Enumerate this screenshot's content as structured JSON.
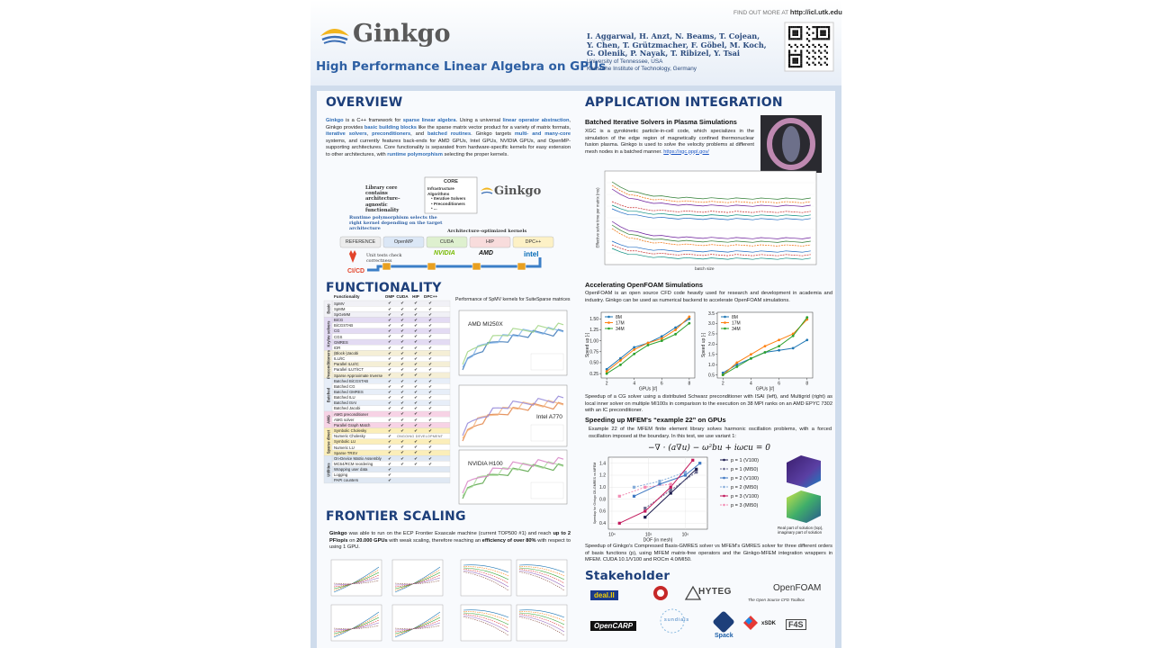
{
  "header": {
    "find_more_label": "FIND OUT MORE AT",
    "find_more_url": "http://icl.utk.edu",
    "logo": "Ginkgo",
    "title": "High Performance Linear Algebra on GPUs",
    "authors": [
      "I. Aggarwal, H. Anzt, N. Beams, T. Cojean,",
      "Y. Chen, T. Grützmacher, F. Göbel, M. Koch,",
      "G. Olenik, P. Nayak, T. Ribizel, Y. Tsai"
    ],
    "affiliations": [
      "University of Tennessee, USA",
      "Karlsruhe Institute of Technology, Germany"
    ]
  },
  "overview": {
    "heading": "OVERVIEW",
    "parts": [
      {
        "text": "Ginkgo",
        "em": true
      },
      " is a C++ framework for ",
      {
        "text": "sparse linear algebra",
        "em": true
      },
      ". Using a universal ",
      {
        "text": "linear operator abstraction",
        "em": true
      },
      ", Ginkgo provides ",
      {
        "text": "basic building blocks",
        "em": true
      },
      " like the sparse matrix vector product for a variety of matrix formats, ",
      {
        "text": "iterative solvers",
        "em": true
      },
      ", ",
      {
        "text": "preconditioners",
        "em": true
      },
      ", and ",
      {
        "text": "batched routines",
        "em": true
      },
      ". Ginkgo targets ",
      {
        "text": "multi- and many-core",
        "em": true
      },
      " systems, and currently features back-ends for AMD GPUs, Intel GPUs, NVIDIA GPUs, and OpenMP-supporting architectures. Core functionality is separated from hardware-specific kernels for easy extension to other architectures, with ",
      {
        "text": "runtime polymorphism",
        "em": true
      },
      " selecting the proper kernels."
    ],
    "diagram": {
      "core_note": "Library core contains architecture–agnostic functionality",
      "core_title": "CORE",
      "core_items": [
        "Infrastructure",
        "Algorithms",
        "• Iterative Solvers",
        "• Preconditioners",
        "• ..."
      ],
      "logo": "Ginkgo",
      "runtime_note": "Runtime polymorphism selects the right kernel depending on the target architecture",
      "kernels_label": "Architecture–optimized kernels",
      "backends": [
        {
          "name": "REFERENCE",
          "color": "#ececec"
        },
        {
          "name": "OpenMP",
          "color": "#dbe7f6"
        },
        {
          "name": "CUDA",
          "color": "#def0cf"
        },
        {
          "name": "HIP",
          "color": "#f8dcdc"
        },
        {
          "name": "DPC++",
          "color": "#fdf1c6"
        }
      ],
      "vendors": [
        "NVIDIA",
        "AMD",
        "intel"
      ],
      "tests_note": "Unit tests check correctness",
      "cicd": "CI/CD"
    }
  },
  "functionality": {
    "heading": "FUNCTIONALITY",
    "columns": [
      "Functionality",
      "OMP",
      "CUDA",
      "HIP",
      "DPC++"
    ],
    "groups": [
      {
        "name": "Basic",
        "color": "#f1f1f6",
        "rows": [
          {
            "name": "SpMV",
            "checks": [
              "✔",
              "✔",
              "✔",
              "✔"
            ]
          },
          {
            "name": "SpMM",
            "checks": [
              "✔",
              "✔",
              "✔",
              "✔"
            ]
          },
          {
            "name": "SpGeMM",
            "checks": [
              "✔",
              "✔",
              "✔",
              "✔"
            ]
          }
        ]
      },
      {
        "name": "Krylov solvers",
        "color": "#e3dbf3",
        "rows": [
          {
            "name": "BiCG",
            "checks": [
              "✔",
              "✔",
              "✔",
              "✔"
            ]
          },
          {
            "name": "BiCGSTAB",
            "checks": [
              "✔",
              "✔",
              "✔",
              "✔"
            ]
          },
          {
            "name": "CG",
            "checks": [
              "✔",
              "✔",
              "✔",
              "✔"
            ]
          },
          {
            "name": "CGS",
            "checks": [
              "✔",
              "✔",
              "✔",
              "✔"
            ]
          },
          {
            "name": "GMRES",
            "checks": [
              "✔",
              "✔",
              "✔",
              "✔"
            ]
          },
          {
            "name": "IDR",
            "checks": [
              "✔",
              "✔",
              "✔",
              "✔"
            ]
          }
        ]
      },
      {
        "name": "Preconditioners",
        "color": "#f5efd6",
        "rows": [
          {
            "name": "(Block-)Jacobi",
            "checks": [
              "✔",
              "✔",
              "✔",
              "✔"
            ]
          },
          {
            "name": "ILU/IC",
            "checks": [
              "✔",
              "✔",
              "✔",
              "✔"
            ]
          },
          {
            "name": "Parallel ILU/IC",
            "checks": [
              "✔",
              "✔",
              "✔",
              "✔"
            ]
          },
          {
            "name": "Parallel ILUT/ICT",
            "checks": [
              "✔",
              "✔",
              "✔",
              "✔"
            ]
          },
          {
            "name": "Sparse Approximate Inverse",
            "checks": [
              "✔",
              "✔",
              "✔",
              "✔"
            ]
          }
        ]
      },
      {
        "name": "Batched",
        "color": "#e7eef8",
        "rows": [
          {
            "name": "Batched BiCGSTAB",
            "checks": [
              "✔",
              "✔",
              "✔",
              "✔"
            ]
          },
          {
            "name": "Batched CG",
            "checks": [
              "✔",
              "✔",
              "✔",
              "✔"
            ]
          },
          {
            "name": "Batched GMRES",
            "checks": [
              "✔",
              "✔",
              "✔",
              "✔"
            ]
          },
          {
            "name": "Batched ILU",
            "checks": [
              "✔",
              "✔",
              "✔",
              "✔"
            ]
          },
          {
            "name": "Batched ISAI",
            "checks": [
              "✔",
              "✔",
              "✔",
              "✔"
            ]
          },
          {
            "name": "Batched Jacobi",
            "checks": [
              "✔",
              "✔",
              "✔",
              "✔"
            ]
          }
        ]
      },
      {
        "name": "AMG",
        "color": "#f7d3e5",
        "rows": [
          {
            "name": "AMG preconditioner",
            "checks": [
              "✔",
              "✔",
              "✔",
              "✔"
            ]
          },
          {
            "name": "AMG solver",
            "checks": [
              "✔",
              "✔",
              "✔",
              "✔"
            ]
          },
          {
            "name": "Parallel Graph Match",
            "checks": [
              "✔",
              "✔",
              "✔",
              "✔"
            ]
          }
        ]
      },
      {
        "name": "Sparse direct",
        "color": "#fbeeb9",
        "rows": [
          {
            "name": "Symbolic Cholesky",
            "checks": [
              "✔",
              "✔",
              "✔",
              "✔"
            ]
          },
          {
            "name": "Numeric Cholesky",
            "checks": [
              "✔"
            ],
            "note": "ONGOING DEVELOPMENT"
          },
          {
            "name": "Symbolic LU",
            "checks": [
              "✔",
              "✔",
              "✔",
              "✔"
            ]
          },
          {
            "name": "Numeric LU",
            "checks": [
              "✔",
              "✔",
              "✔",
              "✔"
            ]
          },
          {
            "name": "Sparse TRSV",
            "checks": [
              "✔",
              "✔",
              "✔",
              "✔"
            ]
          }
        ]
      },
      {
        "name": "Utilities",
        "color": "#dfe8f3",
        "rows": [
          {
            "name": "On-Device Matrix Assembly",
            "checks": [
              "✔",
              "✔",
              "✔",
              "✔"
            ]
          },
          {
            "name": "MC64/RCM reordering",
            "checks": [
              "✔",
              "✔",
              "✔",
              "✔"
            ]
          },
          {
            "name": "Wrapping user data",
            "checks": [
              "✔"
            ]
          },
          {
            "name": "Logging",
            "checks": [
              "✔"
            ]
          },
          {
            "name": "PAPI counters",
            "checks": [
              "✔"
            ]
          }
        ]
      }
    ],
    "perf_title": "Performance of SpMV kernels for SuiteSparse matrices",
    "perf_panels": [
      "AMD MI250X",
      "Intel A770",
      "NVIDIA H100"
    ]
  },
  "frontier": {
    "heading": "FRONTIER SCALING",
    "parts": [
      {
        "text": "Ginkgo",
        "em": false
      },
      " was able to run on the ECP Frontier Exascale machine (current TOP500 #1) and reach ",
      {
        "text": "up to 2 PFlop/s",
        "em": false
      },
      " on ",
      {
        "text": "20.000 GPUs",
        "em": false
      },
      " with weak scaling, therefore reaching an ",
      {
        "text": "efficiency of over 80%",
        "em": false
      },
      " with respect to using 1 GPU."
    ]
  },
  "application": {
    "heading": "APPLICATION INTEGRATION",
    "xgc": {
      "title": "Batched Iterative Solvers in Plasma Simulations",
      "text": "XGC is a gyrokinetic particle-in-cell code, which specializes in the simulation of the edge region of magnetically confined thermonuclear fusion plasma. Ginkgo is used to solve the velocity problems at different mesh nodes in a batched manner. ",
      "link": "https://xgc.pppl.gov/",
      "xlabel": "batch size",
      "ylabel": "Effective solve time per matrix (ms)"
    },
    "openfoam": {
      "title": "Accelerating OpenFOAM Simulations",
      "text": "OpenFOAM is an open source CFD code heavily used for research and development in academia and industry. Ginkgo can be used as numerical backend to accelerate OpenFOAM simulations.",
      "charts": [
        {
          "xlabel": "GPUs [#]",
          "ylabel": "Speed up [-]",
          "legend": "upper left",
          "grid": false,
          "x": [
            2,
            3,
            4,
            5,
            6,
            7,
            8
          ],
          "xlim": [
            1.6,
            8.4
          ],
          "xticks": [
            2,
            4,
            6,
            8
          ],
          "ylim": [
            0.15,
            1.65
          ],
          "yticks": [
            {
              "value": 0.25,
              "label": "0.25"
            },
            {
              "value": 0.5,
              "label": "0.50"
            },
            {
              "value": 0.75,
              "label": "0.75"
            },
            {
              "value": 1,
              "label": "1.00"
            },
            {
              "value": 1.25,
              "label": "1.25"
            },
            {
              "value": 1.5,
              "label": "1.50"
            }
          ],
          "series": [
            {
              "name": "8M",
              "color": "#1f77b4",
              "values": [
                0.35,
                0.6,
                0.85,
                0.95,
                1.1,
                1.3,
                1.5
              ]
            },
            {
              "name": "17M",
              "color": "#ff7f0e",
              "values": [
                0.3,
                0.55,
                0.8,
                0.95,
                1.05,
                1.25,
                1.55
              ]
            },
            {
              "name": "34M",
              "color": "#2ca02c",
              "values": [
                0.25,
                0.45,
                0.7,
                0.9,
                1.0,
                1.15,
                1.4
              ]
            }
          ]
        },
        {
          "xlabel": "GPUs [#]",
          "ylabel": "Speed up [-]",
          "legend": "upper left",
          "grid": false,
          "x": [
            2,
            3,
            4,
            5,
            6,
            7,
            8
          ],
          "xlim": [
            1.6,
            8.4
          ],
          "xticks": [
            2,
            4,
            6,
            8
          ],
          "ylim": [
            0.35,
            3.55
          ],
          "yticks": [
            {
              "value": 0.5,
              "label": "0.5"
            },
            {
              "value": 1,
              "label": "1.0"
            },
            {
              "value": 1.5,
              "label": "1.5"
            },
            {
              "value": 2,
              "label": "2.0"
            },
            {
              "value": 2.5,
              "label": "2.5"
            },
            {
              "value": 3,
              "label": "3.0"
            },
            {
              "value": 3.5,
              "label": "3.5"
            }
          ],
          "series": [
            {
              "name": "8M",
              "color": "#1f77b4",
              "values": [
                0.6,
                1.0,
                1.3,
                1.6,
                1.7,
                1.8,
                2.2
              ]
            },
            {
              "name": "17M",
              "color": "#ff7f0e",
              "values": [
                0.5,
                1.1,
                1.5,
                1.9,
                2.2,
                2.5,
                3.2
              ]
            },
            {
              "name": "34M",
              "color": "#2ca02c",
              "values": [
                0.5,
                0.9,
                1.3,
                1.6,
                1.9,
                2.4,
                3.3
              ]
            }
          ]
        }
      ],
      "caption": "Speedup of a CG solver using a distributed Schwarz preconditioner with ISAI (left), and Multigrid (right) as local inner solver on multiple MI100s in comparison to the execution on 38 MPI ranks on an AMD EPYC 7302 with an IC preconditioner."
    },
    "mfem": {
      "title": "Speeding up MFEM's “example 22” on GPUs",
      "text": "Example 22 of the MFEM finite element library solves harmonic oscillation problems, with a forced oscillation imposed at the boundary. In this test, we use variant 1:",
      "formula": "−∇ · (a∇u) − ω²bu + iωcu = 0",
      "chart": {
        "xlabel": "DOF (in mesh)",
        "ylabel": "Speedup for Ginkgo CB-GMRES vs MFEM",
        "legend": "right",
        "grid": true,
        "xscale": "log",
        "xlim": [
          8000,
          4000000
        ],
        "xticks": [
          {
            "value": 10000,
            "label": "10⁴"
          },
          {
            "value": 100000,
            "label": "10⁵"
          },
          {
            "value": 1000000,
            "label": "10⁶"
          }
        ],
        "ylim": [
          0.3,
          1.5
        ],
        "yticks": [
          0.4,
          0.6,
          0.8,
          {
            "value": 1,
            "label": "1.0"
          },
          1.2,
          1.4
        ],
        "series": [
          {
            "name": "p = 1 (V100)",
            "color": "#1b1b4d",
            "dashed": false,
            "x": [
              80000,
              400000,
              2000000
            ],
            "values": [
              0.5,
              0.9,
              1.3
            ]
          },
          {
            "name": "p = 1 (MI50)",
            "color": "#6b6b8f",
            "dashed": true,
            "x": [
              80000,
              400000,
              2000000
            ],
            "values": [
              0.65,
              0.95,
              1.25
            ]
          },
          {
            "name": "p = 2 (V100)",
            "color": "#3f78c2",
            "dashed": false,
            "x": [
              40000,
              200000,
              1000000,
              2500000
            ],
            "values": [
              0.85,
              1.05,
              1.2,
              1.4
            ]
          },
          {
            "name": "p = 2 (MI50)",
            "color": "#86acd9",
            "dashed": true,
            "x": [
              40000,
              200000,
              1000000
            ],
            "values": [
              1.0,
              1.1,
              1.25
            ]
          },
          {
            "name": "p = 3 (V100)",
            "color": "#c2185b",
            "dashed": false,
            "x": [
              16000,
              80000,
              400000,
              1600000
            ],
            "values": [
              0.4,
              0.6,
              1.0,
              1.45
            ]
          },
          {
            "name": "p = 3 (MI50)",
            "color": "#f28db4",
            "dashed": true,
            "x": [
              16000,
              80000,
              400000
            ],
            "values": [
              0.85,
              1.0,
              1.05
            ]
          }
        ]
      },
      "image_caption": "Real part of solution (top), imaginary part of solution",
      "caption": "Speedup of Ginkgo's Compressed Basis-GMRES solver vs MFEM's GMRES solver for three different orders of basis functions (p), using MFEM matrix-free operators and the Ginkgo-MFEM integration wrappers in MFEM.  CUDA 10.1/V100 and ROCm 4.0/MI50."
    }
  },
  "stakeholder": {
    "heading": "Stakeholder",
    "logos": [
      "deal.II",
      "HYTEG",
      "OpenFOAM",
      "The Open Source CFD Toolbox",
      "OpenCARP",
      "sundials",
      "Spack",
      "xSDK",
      "F4S"
    ]
  }
}
